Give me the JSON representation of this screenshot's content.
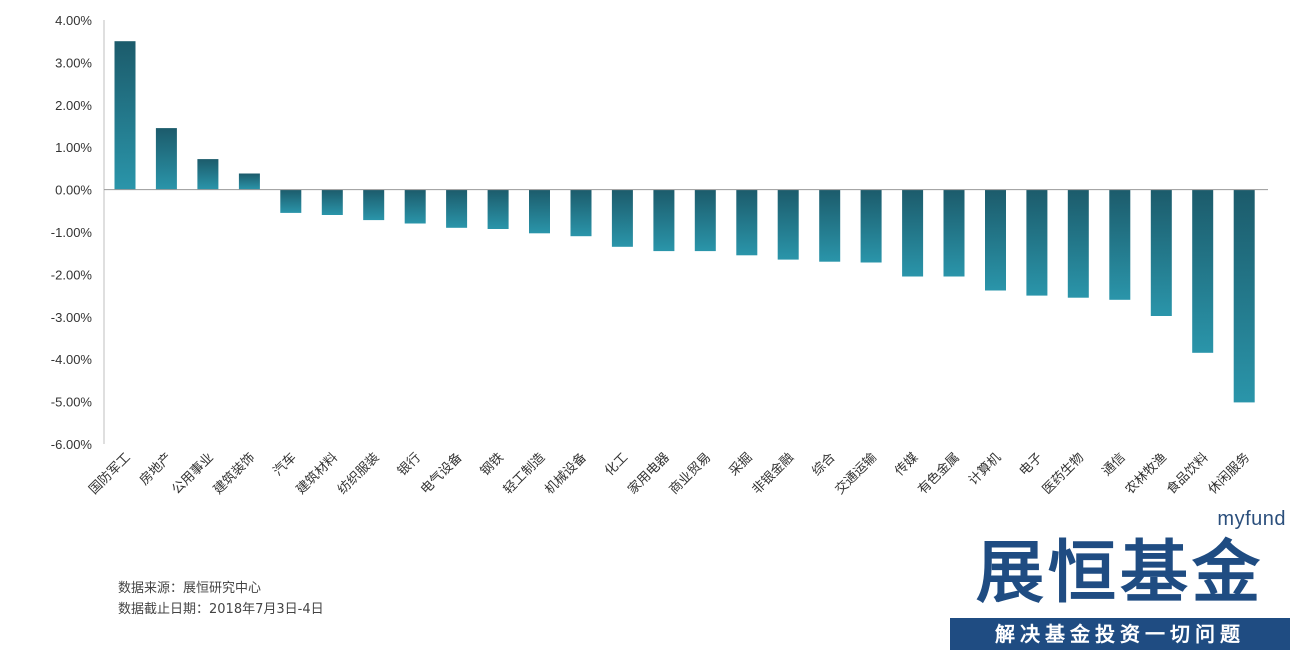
{
  "chart_data": {
    "type": "bar",
    "categories": [
      "国防军工",
      "房地产",
      "公用事业",
      "建筑装饰",
      "汽车",
      "建筑材料",
      "纺织服装",
      "银行",
      "电气设备",
      "钢铁",
      "轻工制造",
      "机械设备",
      "化工",
      "家用电器",
      "商业贸易",
      "采掘",
      "非银金融",
      "综合",
      "交通运输",
      "传媒",
      "有色金属",
      "计算机",
      "电子",
      "医药生物",
      "通信",
      "农林牧渔",
      "食品饮料",
      "休闲服务"
    ],
    "values": [
      3.5,
      1.45,
      0.72,
      0.38,
      -0.55,
      -0.6,
      -0.72,
      -0.8,
      -0.9,
      -0.93,
      -1.03,
      -1.1,
      -1.35,
      -1.45,
      -1.45,
      -1.55,
      -1.65,
      -1.7,
      -1.72,
      -2.05,
      -2.05,
      -2.38,
      -2.5,
      -2.55,
      -2.6,
      -2.98,
      -3.85,
      -5.02
    ],
    "ylim": [
      -6,
      4
    ],
    "yticks": [
      4,
      3,
      2,
      1,
      0,
      -1,
      -2,
      -3,
      -4,
      -5,
      -6
    ],
    "ytick_labels": [
      "4.00%",
      "3.00%",
      "2.00%",
      "1.00%",
      "0.00%",
      "-1.00%",
      "-2.00%",
      "-3.00%",
      "-4.00%",
      "-5.00%",
      "-6.00%"
    ],
    "grid": false,
    "bar_color_top": "#1c5b6b",
    "bar_color_bottom": "#2a95aa"
  },
  "notes": {
    "source": "数据来源：展恒研究中心",
    "date": "数据截止日期：2018年7月3日-4日"
  },
  "logo": {
    "small": "myfund",
    "main": "展恒基金",
    "banner": "解决基金投资一切问题",
    "color": "#1f4c82"
  }
}
